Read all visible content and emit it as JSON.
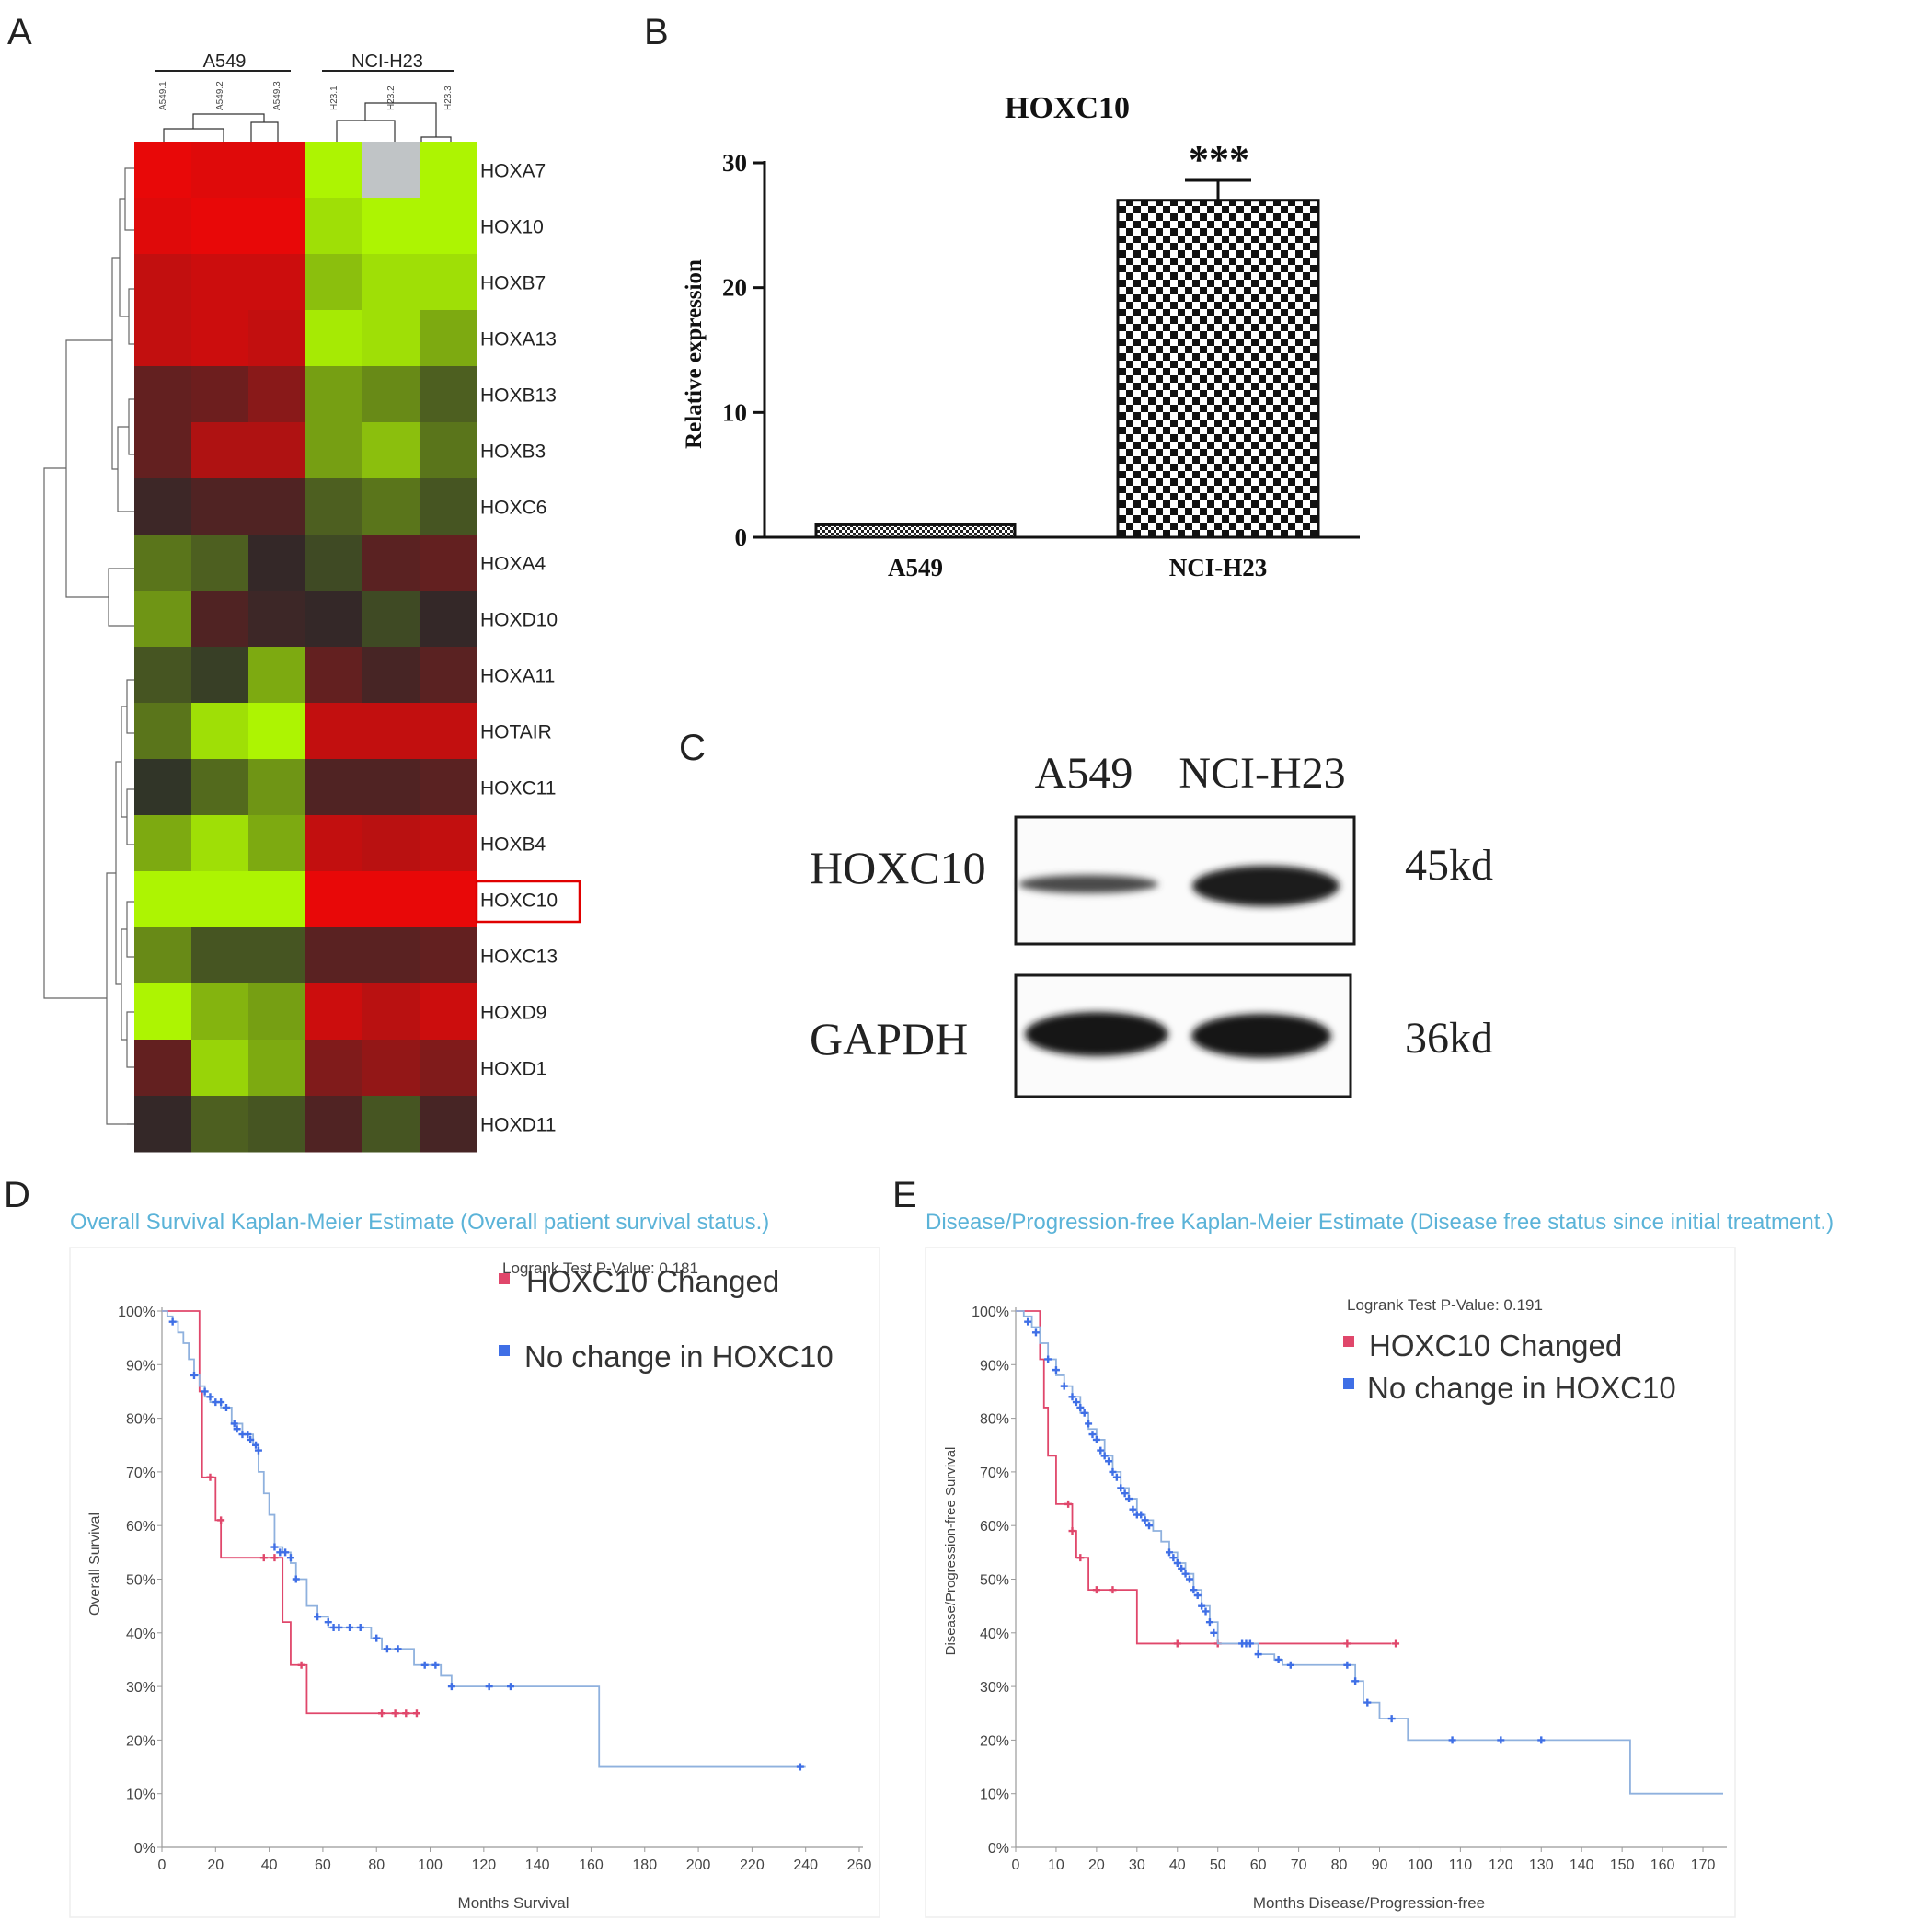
{
  "panels": {
    "A": {
      "label": "A",
      "group_labels": [
        "A549",
        "NCI-H23"
      ],
      "column_labels": [
        "A549.1",
        "A549.2",
        "A549.3",
        "H23.1",
        "H23.2",
        "H23.3"
      ],
      "highlight_gene": "HOXC10"
    },
    "B": {
      "label": "B",
      "significance": "***"
    },
    "C": {
      "label": "C",
      "lanes": [
        "A549",
        "NCI-H23"
      ],
      "rows": [
        {
          "protein": "HOXC10",
          "size": "45kd"
        },
        {
          "protein": "GAPDH",
          "size": "36kd"
        }
      ]
    },
    "D": {
      "label": "D",
      "title": "Overall Survival Kaplan-Meier Estimate (Overall patient survival status.)",
      "pvalue_text": "Logrank Test P-Value: 0.181"
    },
    "E": {
      "label": "E",
      "title": "Disease/Progression-free Kaplan-Meier Estimate (Disease free status since initial treatment.)",
      "pvalue_text": "Logrank Test P-Value: 0.191"
    }
  },
  "colors": {
    "km_changed": "#e0476b",
    "km_nochange": "#3f6fe6",
    "km_nochange_line": "#8fb1de",
    "title_cyan": "#5bb3d8",
    "heat_high": "#d00000",
    "heat_low": "#b4ff00",
    "heat_mid": "#2a2a2a",
    "highlight_box": "#e00000"
  },
  "chart_data": [
    {
      "panel": "A",
      "type": "heatmap",
      "columns": [
        "A549.1",
        "A549.2",
        "A549.3",
        "H23.1",
        "H23.2",
        "H23.3"
      ],
      "rows": [
        "HOXA7",
        "HOX10",
        "HOXB7",
        "HOXA13",
        "HOXB13",
        "HOXB3",
        "HOXC6",
        "HOXA4",
        "HOXD10",
        "HOXA11",
        "HOTAIR",
        "HOXC11",
        "HOXB4",
        "HOXC10",
        "HOXC13",
        "HOXD9",
        "HOXD1",
        "HOXD11"
      ],
      "values": [
        [
          1.0,
          0.95,
          0.95,
          -0.95,
          null,
          -0.95
        ],
        [
          0.95,
          1.0,
          1.0,
          -0.85,
          -0.95,
          -0.95
        ],
        [
          0.8,
          0.85,
          0.85,
          -0.7,
          -0.85,
          -0.85
        ],
        [
          0.8,
          0.85,
          0.8,
          -0.9,
          -0.85,
          -0.6
        ],
        [
          0.3,
          0.35,
          0.5,
          -0.55,
          -0.45,
          -0.25
        ],
        [
          0.3,
          0.7,
          0.7,
          -0.55,
          -0.7,
          -0.35
        ],
        [
          0.1,
          0.2,
          0.2,
          -0.25,
          -0.35,
          -0.2
        ],
        [
          -0.35,
          -0.25,
          0.05,
          -0.15,
          0.25,
          0.3
        ],
        [
          -0.5,
          0.2,
          0.1,
          0.05,
          -0.15,
          0.05
        ],
        [
          -0.2,
          -0.1,
          -0.6,
          0.3,
          0.15,
          0.25
        ],
        [
          -0.35,
          -0.85,
          -0.95,
          0.8,
          0.8,
          0.8
        ],
        [
          -0.05,
          -0.3,
          -0.5,
          0.2,
          0.2,
          0.25
        ],
        [
          -0.6,
          -0.85,
          -0.6,
          0.8,
          0.75,
          0.8
        ],
        [
          -0.95,
          -0.95,
          -0.95,
          1.0,
          1.0,
          1.0
        ],
        [
          -0.45,
          -0.2,
          -0.2,
          0.25,
          0.25,
          0.3
        ],
        [
          -0.95,
          -0.65,
          -0.55,
          0.85,
          0.75,
          0.85
        ],
        [
          0.3,
          -0.8,
          -0.6,
          0.45,
          0.55,
          0.45
        ],
        [
          0.05,
          -0.25,
          -0.2,
          0.2,
          -0.2,
          0.15
        ]
      ],
      "color_scale": "green (low) – black – red (high)"
    },
    {
      "panel": "B",
      "type": "bar",
      "title": "HOXC10",
      "categories": [
        "A549",
        "NCI-H23"
      ],
      "values": [
        1,
        27
      ],
      "error": [
        0,
        1.6
      ],
      "ylabel": "Relative  expression",
      "ylim": [
        0,
        30
      ],
      "yticks": [
        0,
        10,
        20,
        30
      ]
    },
    {
      "panel": "D",
      "type": "line",
      "xlabel": "Months Survival",
      "ylabel": "Overall Survival",
      "xlim": [
        0,
        260
      ],
      "ylim": [
        0,
        100
      ],
      "xticks": [
        0,
        20,
        40,
        60,
        80,
        100,
        120,
        140,
        160,
        180,
        200,
        220,
        240,
        260
      ],
      "yticks": [
        0,
        10,
        20,
        30,
        40,
        50,
        60,
        70,
        80,
        90,
        100
      ],
      "ytick_suffix": "%",
      "series": [
        {
          "name": "HOXC10 Changed",
          "steps": [
            [
              0,
              100
            ],
            [
              8,
              100
            ],
            [
              14,
              85
            ],
            [
              15,
              69
            ],
            [
              18,
              69
            ],
            [
              20,
              61
            ],
            [
              22,
              54
            ],
            [
              38,
              54
            ],
            [
              40,
              54
            ],
            [
              42,
              54
            ],
            [
              45,
              42
            ],
            [
              48,
              34
            ],
            [
              52,
              34
            ],
            [
              54,
              25
            ],
            [
              82,
              25
            ],
            [
              87,
              25
            ],
            [
              91,
              25
            ],
            [
              95,
              25
            ]
          ],
          "censored": [
            [
              18,
              69
            ],
            [
              22,
              61
            ],
            [
              38,
              54
            ],
            [
              42,
              54
            ],
            [
              52,
              34
            ],
            [
              82,
              25
            ],
            [
              87,
              25
            ],
            [
              91,
              25
            ],
            [
              95,
              25
            ]
          ]
        },
        {
          "name": "No change in HOXC10",
          "steps": [
            [
              0,
              100
            ],
            [
              2,
              99
            ],
            [
              4,
              98
            ],
            [
              6,
              96
            ],
            [
              8,
              94
            ],
            [
              10,
              91
            ],
            [
              12,
              88
            ],
            [
              14,
              86
            ],
            [
              16,
              84
            ],
            [
              18,
              83
            ],
            [
              22,
              82
            ],
            [
              26,
              79
            ],
            [
              30,
              77
            ],
            [
              34,
              75
            ],
            [
              36,
              70
            ],
            [
              38,
              66
            ],
            [
              40,
              62
            ],
            [
              42,
              56
            ],
            [
              45,
              55
            ],
            [
              48,
              53
            ],
            [
              50,
              50
            ],
            [
              54,
              45
            ],
            [
              58,
              43
            ],
            [
              62,
              41
            ],
            [
              66,
              41
            ],
            [
              76,
              41
            ],
            [
              78,
              39
            ],
            [
              82,
              37
            ],
            [
              90,
              37
            ],
            [
              94,
              34
            ],
            [
              100,
              34
            ],
            [
              104,
              32
            ],
            [
              108,
              30
            ],
            [
              120,
              30
            ],
            [
              130,
              30
            ],
            [
              163,
              30
            ],
            [
              163,
              15
            ],
            [
              240,
              15
            ]
          ],
          "censored": [
            [
              4,
              98
            ],
            [
              12,
              88
            ],
            [
              16,
              85
            ],
            [
              18,
              84
            ],
            [
              20,
              83
            ],
            [
              22,
              83
            ],
            [
              24,
              82
            ],
            [
              27,
              79
            ],
            [
              28,
              78
            ],
            [
              30,
              77
            ],
            [
              32,
              77
            ],
            [
              33,
              76
            ],
            [
              35,
              75
            ],
            [
              36,
              74
            ],
            [
              42,
              56
            ],
            [
              44,
              55
            ],
            [
              46,
              55
            ],
            [
              48,
              54
            ],
            [
              50,
              50
            ],
            [
              58,
              43
            ],
            [
              62,
              42
            ],
            [
              64,
              41
            ],
            [
              66,
              41
            ],
            [
              70,
              41
            ],
            [
              74,
              41
            ],
            [
              80,
              39
            ],
            [
              84,
              37
            ],
            [
              88,
              37
            ],
            [
              98,
              34
            ],
            [
              102,
              34
            ],
            [
              108,
              30
            ],
            [
              122,
              30
            ],
            [
              130,
              30
            ],
            [
              238,
              15
            ]
          ]
        }
      ]
    },
    {
      "panel": "E",
      "type": "line",
      "xlabel": "Months Disease/Progression-free",
      "ylabel": "Disease/Progression-free Survival",
      "xlim": [
        0,
        175
      ],
      "ylim": [
        0,
        100
      ],
      "xticks": [
        0,
        10,
        20,
        30,
        40,
        50,
        60,
        70,
        80,
        90,
        100,
        110,
        120,
        130,
        140,
        150,
        160,
        170
      ],
      "yticks": [
        0,
        10,
        20,
        30,
        40,
        50,
        60,
        70,
        80,
        90,
        100
      ],
      "ytick_suffix": "%",
      "series": [
        {
          "name": "HOXC10 Changed",
          "steps": [
            [
              0,
              100
            ],
            [
              4,
              100
            ],
            [
              6,
              91
            ],
            [
              7,
              82
            ],
            [
              8,
              73
            ],
            [
              10,
              64
            ],
            [
              12,
              64
            ],
            [
              14,
              59
            ],
            [
              15,
              54
            ],
            [
              17,
              54
            ],
            [
              18,
              48
            ],
            [
              24,
              48
            ],
            [
              30,
              48
            ],
            [
              30,
              38
            ],
            [
              93,
              38
            ]
          ],
          "censored": [
            [
              13,
              64
            ],
            [
              14,
              59
            ],
            [
              16,
              54
            ],
            [
              20,
              48
            ],
            [
              24,
              48
            ],
            [
              40,
              38
            ],
            [
              50,
              38
            ],
            [
              82,
              38
            ],
            [
              94,
              38
            ]
          ]
        },
        {
          "name": "No change in HOXC10",
          "steps": [
            [
              0,
              100
            ],
            [
              2,
              99
            ],
            [
              4,
              97
            ],
            [
              6,
              94
            ],
            [
              8,
              91
            ],
            [
              10,
              88
            ],
            [
              12,
              86
            ],
            [
              14,
              84
            ],
            [
              16,
              81
            ],
            [
              18,
              78
            ],
            [
              20,
              76
            ],
            [
              22,
              73
            ],
            [
              24,
              70
            ],
            [
              26,
              67
            ],
            [
              28,
              65
            ],
            [
              30,
              62
            ],
            [
              32,
              61
            ],
            [
              34,
              59
            ],
            [
              36,
              57
            ],
            [
              38,
              55
            ],
            [
              40,
              53
            ],
            [
              42,
              51
            ],
            [
              44,
              48
            ],
            [
              46,
              45
            ],
            [
              48,
              42
            ],
            [
              50,
              38
            ],
            [
              56,
              38
            ],
            [
              60,
              36
            ],
            [
              64,
              35
            ],
            [
              66,
              34
            ],
            [
              68,
              34
            ],
            [
              82,
              34
            ],
            [
              84,
              31
            ],
            [
              86,
              27
            ],
            [
              90,
              24
            ],
            [
              95,
              24
            ],
            [
              97,
              20
            ],
            [
              150,
              20
            ],
            [
              152,
              10
            ],
            [
              175,
              10
            ]
          ],
          "censored": [
            [
              3,
              98
            ],
            [
              5,
              96
            ],
            [
              8,
              91
            ],
            [
              10,
              89
            ],
            [
              12,
              86
            ],
            [
              14,
              84
            ],
            [
              15,
              83
            ],
            [
              16,
              82
            ],
            [
              17,
              81
            ],
            [
              18,
              79
            ],
            [
              19,
              77
            ],
            [
              20,
              76
            ],
            [
              21,
              74
            ],
            [
              22,
              73
            ],
            [
              23,
              72
            ],
            [
              24,
              70
            ],
            [
              25,
              69
            ],
            [
              26,
              67
            ],
            [
              27,
              66
            ],
            [
              28,
              65
            ],
            [
              29,
              63
            ],
            [
              30,
              62
            ],
            [
              31,
              62
            ],
            [
              32,
              61
            ],
            [
              33,
              60
            ],
            [
              38,
              55
            ],
            [
              39,
              54
            ],
            [
              40,
              53
            ],
            [
              41,
              52
            ],
            [
              42,
              51
            ],
            [
              43,
              50
            ],
            [
              44,
              48
            ],
            [
              45,
              47
            ],
            [
              46,
              45
            ],
            [
              47,
              44
            ],
            [
              48,
              42
            ],
            [
              49,
              40
            ],
            [
              56,
              38
            ],
            [
              57,
              38
            ],
            [
              58,
              38
            ],
            [
              60,
              36
            ],
            [
              65,
              35
            ],
            [
              68,
              34
            ],
            [
              82,
              34
            ],
            [
              84,
              31
            ],
            [
              87,
              27
            ],
            [
              93,
              24
            ],
            [
              108,
              20
            ],
            [
              120,
              20
            ],
            [
              130,
              20
            ]
          ]
        }
      ]
    }
  ]
}
